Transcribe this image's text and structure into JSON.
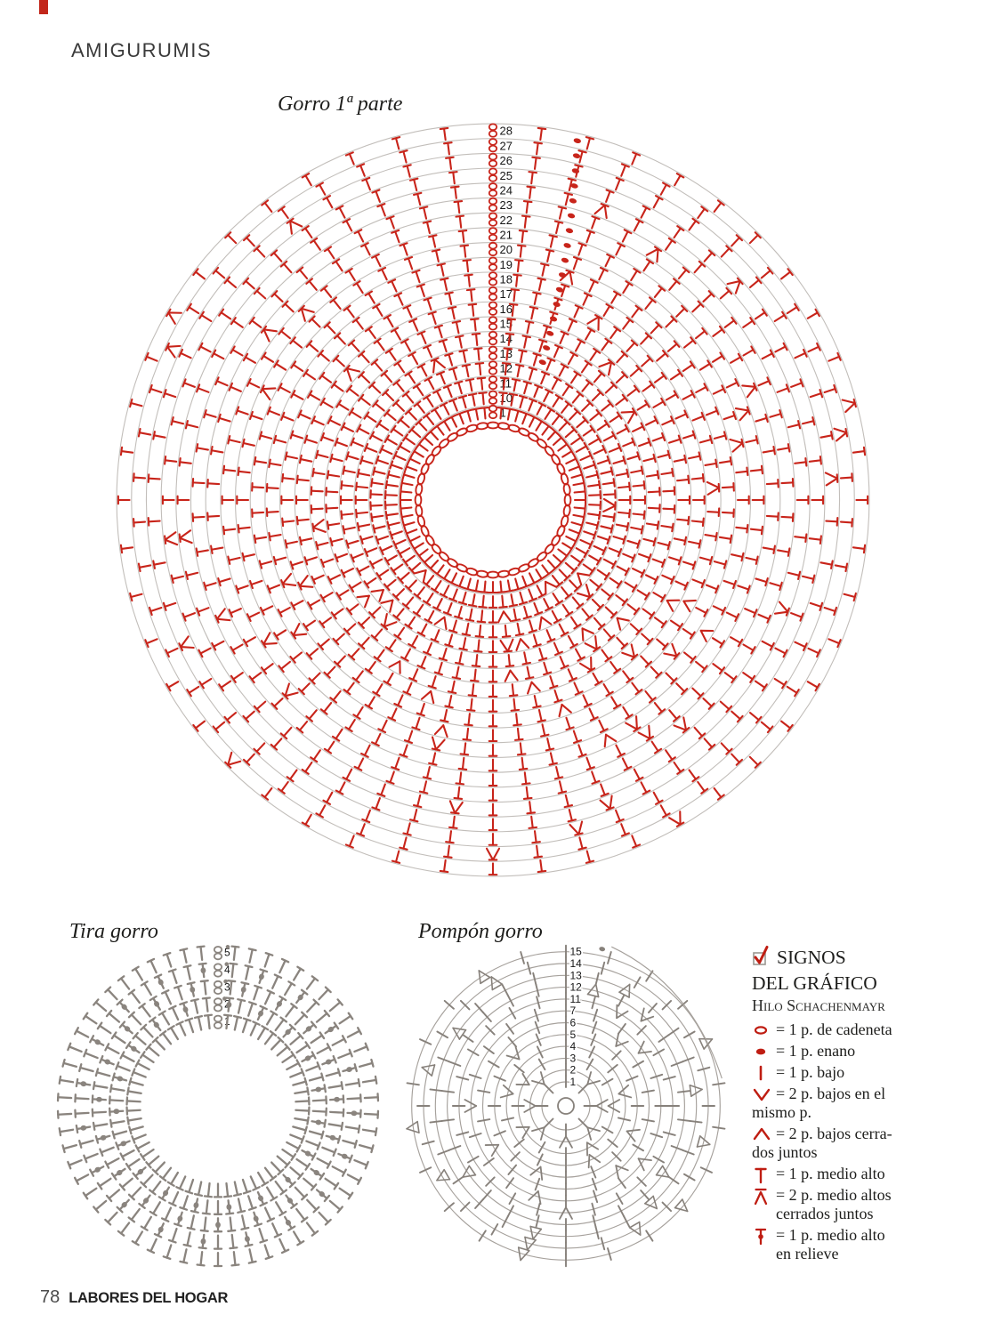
{
  "page": {
    "section_title": "AMIGURUMIS",
    "footer": {
      "page_number": "78",
      "magazine": "LABORES DEL HOGAR"
    }
  },
  "colors": {
    "red": "#c8241a",
    "legend_red": "#bf1d12",
    "circle_gray": "#c2beba",
    "stitch_gray": "#8a847e",
    "pompon_circle_gray": "#a6a19c",
    "text": "#1d1d1b"
  },
  "diagrams": {
    "gorro": {
      "title": "Gorro 1ª parte",
      "rows": [
        {
          "label": "1",
          "count": 68,
          "dec": 0,
          "inc": 0,
          "dot": false
        },
        {
          "label": "10",
          "count": 66,
          "dec": 0,
          "inc": 2,
          "dot": false
        },
        {
          "label": "11",
          "count": 66,
          "dec": 1,
          "inc": 2,
          "dot": false
        },
        {
          "label": "12",
          "count": 64,
          "dec": 1,
          "inc": 2,
          "dot": false
        },
        {
          "label": "13",
          "count": 64,
          "dec": 2,
          "inc": 3,
          "dot": true
        },
        {
          "label": "14",
          "count": 62,
          "dec": 2,
          "inc": 2,
          "dot": true
        },
        {
          "label": "15",
          "count": 62,
          "dec": 3,
          "inc": 2,
          "dot": true
        },
        {
          "label": "16",
          "count": 60,
          "dec": 2,
          "inc": 2,
          "dot": true
        },
        {
          "label": "17",
          "count": 60,
          "dec": 3,
          "inc": 2,
          "dot": true
        },
        {
          "label": "18",
          "count": 58,
          "dec": 2,
          "inc": 2,
          "dot": true
        },
        {
          "label": "19",
          "count": 58,
          "dec": 3,
          "inc": 1,
          "dot": true
        },
        {
          "label": "20",
          "count": 56,
          "dec": 3,
          "inc": 1,
          "dot": true
        },
        {
          "label": "21",
          "count": 56,
          "dec": 4,
          "inc": 1,
          "dot": true
        },
        {
          "label": "22",
          "count": 54,
          "dec": 4,
          "inc": 0,
          "dot": true
        },
        {
          "label": "23",
          "count": 54,
          "dec": 3,
          "inc": 0,
          "dot": true
        },
        {
          "label": "24",
          "count": 52,
          "dec": 4,
          "inc": 0,
          "dot": true
        },
        {
          "label": "25",
          "count": 52,
          "dec": 3,
          "inc": 0,
          "dot": true
        },
        {
          "label": "26",
          "count": 50,
          "dec": 4,
          "inc": 0,
          "dot": true
        },
        {
          "label": "27",
          "count": 50,
          "dec": 3,
          "inc": 0,
          "dot": true
        },
        {
          "label": "28",
          "count": 48,
          "dec": 4,
          "inc": 0,
          "dot": true
        }
      ]
    },
    "tira": {
      "title": "Tira gorro",
      "rows": [
        {
          "label": "1",
          "count": 58,
          "relief": false
        },
        {
          "label": "2",
          "count": 58,
          "relief": true
        },
        {
          "label": "3",
          "count": 58,
          "relief": true
        },
        {
          "label": "4",
          "count": 58,
          "relief": true
        },
        {
          "label": "5",
          "count": 58,
          "relief": false
        }
      ]
    },
    "pompon": {
      "title": "Pompón gorro",
      "rows": [
        {
          "label": "1",
          "count": 8,
          "v": 0,
          "tri": 0
        },
        {
          "label": "2",
          "count": 8,
          "v": 8,
          "tri": 0
        },
        {
          "label": "3",
          "count": 12,
          "v": 4,
          "tri": 0
        },
        {
          "label": "4",
          "count": 14,
          "v": 3,
          "tri": 0
        },
        {
          "label": "5",
          "count": 16,
          "v": 3,
          "tri": 0
        },
        {
          "label": "6",
          "count": 18,
          "v": 3,
          "tri": 0
        },
        {
          "label": "7",
          "count": 20,
          "v": 4,
          "tri": 0
        },
        {
          "label": "11",
          "count": 24,
          "v": 2,
          "tri": 0
        },
        {
          "label": "12",
          "count": 26,
          "v": 1,
          "tri": 3
        },
        {
          "label": "13",
          "count": 26,
          "v": 0,
          "tri": 5
        },
        {
          "label": "14",
          "count": 24,
          "v": 0,
          "tri": 6
        },
        {
          "label": "15",
          "count": 22,
          "v": 0,
          "tri": 5
        }
      ]
    }
  },
  "legend": {
    "heading_line1": "SIGNOS",
    "heading_line2": "DEL GRÁFICO",
    "subheading": "Hilo Schachenmayr",
    "items": [
      {
        "symbol": "chain-stitch-icon",
        "lines": [
          "= 1 p. de cadeneta"
        ],
        "wrap": "indent"
      },
      {
        "symbol": "slip-stitch-icon",
        "lines": [
          "= 1 p. enano"
        ],
        "wrap": "indent"
      },
      {
        "symbol": "single-crochet-icon",
        "lines": [
          "= 1 p. bajo"
        ],
        "wrap": "indent"
      },
      {
        "symbol": "two-sc-same-stitch-icon",
        "lines": [
          "= 2 p. bajos en el",
          "mismo p."
        ],
        "wrap": "flush"
      },
      {
        "symbol": "two-sc-together-icon",
        "lines": [
          "= 2 p. bajos cerra-",
          "dos juntos"
        ],
        "wrap": "flush"
      },
      {
        "symbol": "half-double-crochet-icon",
        "lines": [
          "= 1 p. medio alto"
        ],
        "wrap": "indent"
      },
      {
        "symbol": "two-hdc-together-icon",
        "lines": [
          "= 2 p. medio altos",
          "cerrados juntos"
        ],
        "wrap": "indent"
      },
      {
        "symbol": "hdc-relief-icon",
        "lines": [
          "= 1 p. medio alto",
          "en relieve"
        ],
        "wrap": "indent"
      }
    ]
  }
}
